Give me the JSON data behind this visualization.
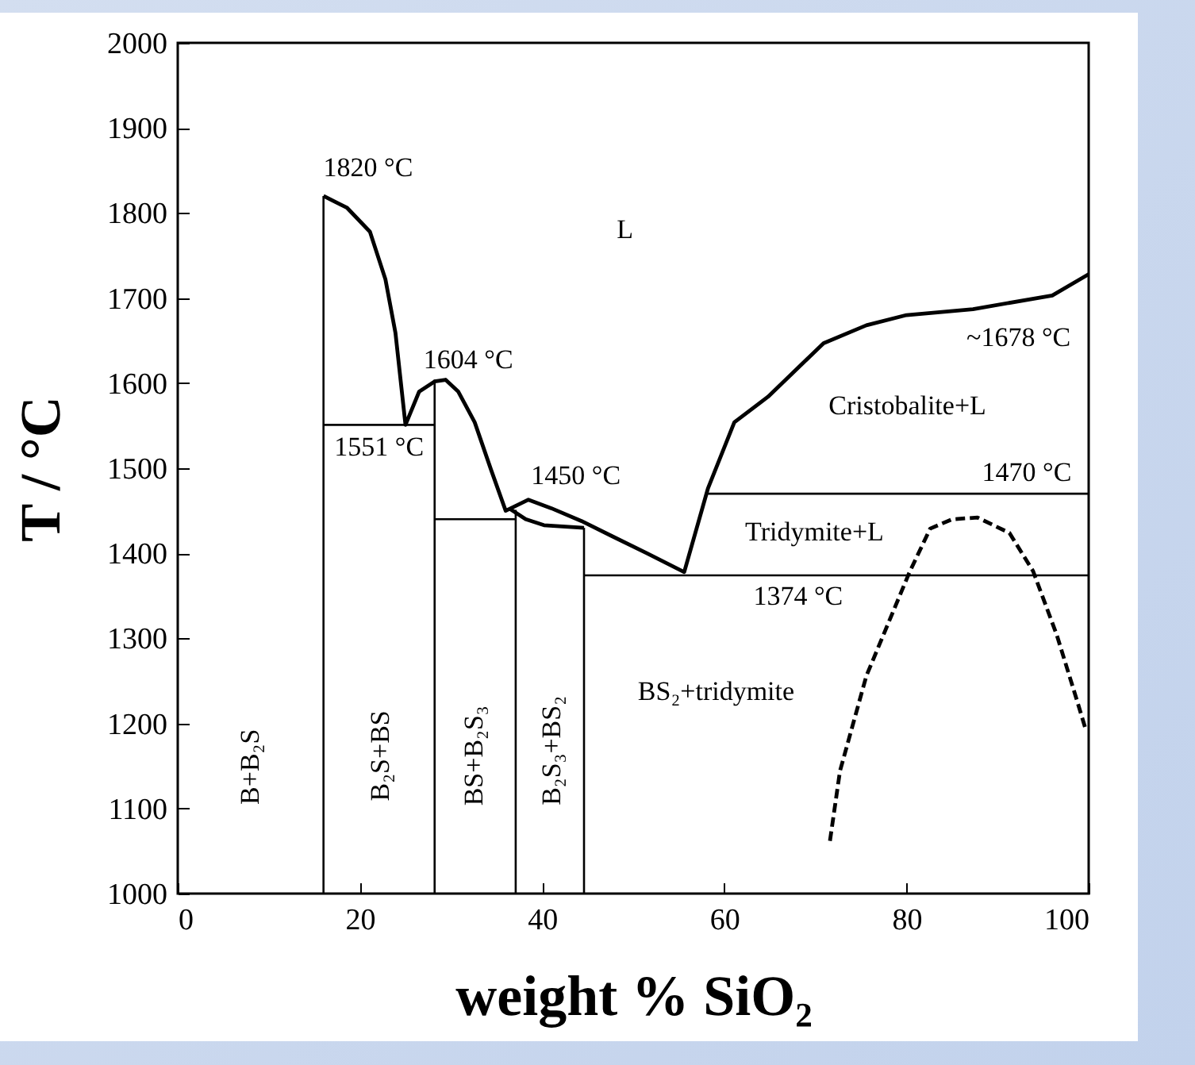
{
  "chart_data": {
    "type": "line",
    "xlabel": "weight % SiO₂",
    "ylabel": "T / °C",
    "xlim": [
      0,
      100
    ],
    "ylim": [
      1000,
      2000
    ],
    "xticks": [
      0,
      20,
      40,
      60,
      80,
      100
    ],
    "yticks": [
      1000,
      1100,
      1200,
      1300,
      1400,
      1500,
      1600,
      1700,
      1800,
      1900,
      2000
    ],
    "grid": false,
    "marker": "none",
    "series": [
      {
        "color": "#000000",
        "line_style": "solid",
        "x": [
          16,
          18.6,
          21.1,
          22.8,
          23.9,
          25,
          26.5,
          28.2,
          29.4,
          30.8,
          32.6,
          34.4,
          36,
          38.5,
          41,
          44.3,
          47.7,
          51.5,
          55.6,
          58.2,
          61.1,
          64.8,
          70.9,
          75.6,
          80,
          87.3,
          96,
          100
        ],
        "values": [
          1820,
          1806,
          1778,
          1722,
          1659,
          1551,
          1590,
          1602,
          1604,
          1590,
          1554,
          1498,
          1450,
          1463,
          1453,
          1438,
          1420,
          1400,
          1378,
          1476,
          1554,
          1584,
          1647,
          1668,
          1680,
          1687,
          1703,
          1728
        ]
      },
      {
        "color": "#000000",
        "line_style": "solid",
        "x": [
          36.5,
          38.2,
          40.2,
          44.6
        ],
        "values": [
          1452,
          1440,
          1433,
          1430
        ]
      },
      {
        "color": "#000000",
        "line_style": "solid",
        "x": [
          16,
          16
        ],
        "values": [
          1000,
          1820
        ]
      },
      {
        "color": "#000000",
        "line_style": "solid",
        "x": [
          28.2,
          28.2
        ],
        "values": [
          1000,
          1604
        ]
      },
      {
        "color": "#000000",
        "line_style": "solid",
        "x": [
          37.1,
          37.1
        ],
        "values": [
          1000,
          1451
        ]
      },
      {
        "color": "#000000",
        "line_style": "solid",
        "x": [
          44.6,
          44.6
        ],
        "values": [
          1000,
          1430
        ]
      },
      {
        "color": "#000000",
        "line_style": "solid",
        "x": [
          16,
          28.2
        ],
        "values": [
          1551,
          1551
        ]
      },
      {
        "color": "#000000",
        "line_style": "solid",
        "x": [
          28.2,
          37.1
        ],
        "values": [
          1440,
          1440
        ]
      },
      {
        "color": "#000000",
        "line_style": "solid",
        "x": [
          44.6,
          100
        ],
        "values": [
          1374,
          1374
        ]
      },
      {
        "color": "#000000",
        "line_style": "solid",
        "x": [
          58.2,
          100
        ],
        "values": [
          1470,
          1470
        ]
      },
      {
        "color": "#000000",
        "line_style": "dashed",
        "x": [
          71.6,
          72.7,
          75.6,
          80.3,
          82.6,
          85,
          87.8,
          91.3,
          93.9,
          96.5,
          98.8,
          99.7
        ],
        "values": [
          1062,
          1144,
          1256,
          1377,
          1429,
          1440,
          1442,
          1424,
          1379,
          1304,
          1224,
          1192
        ]
      }
    ],
    "annotations": [
      "1820 °C",
      "L",
      "1604 °C",
      "~1678 °C",
      "Cristobalite+L",
      "1551 °C",
      "1450 °C",
      "1470 °C",
      "Tridymite+L",
      "1374 °C",
      "BS₂+tridymite",
      "B+B₂S",
      "B₂S+BS",
      "BS+B₂S₃",
      "B₂S₃+BS₂"
    ]
  }
}
